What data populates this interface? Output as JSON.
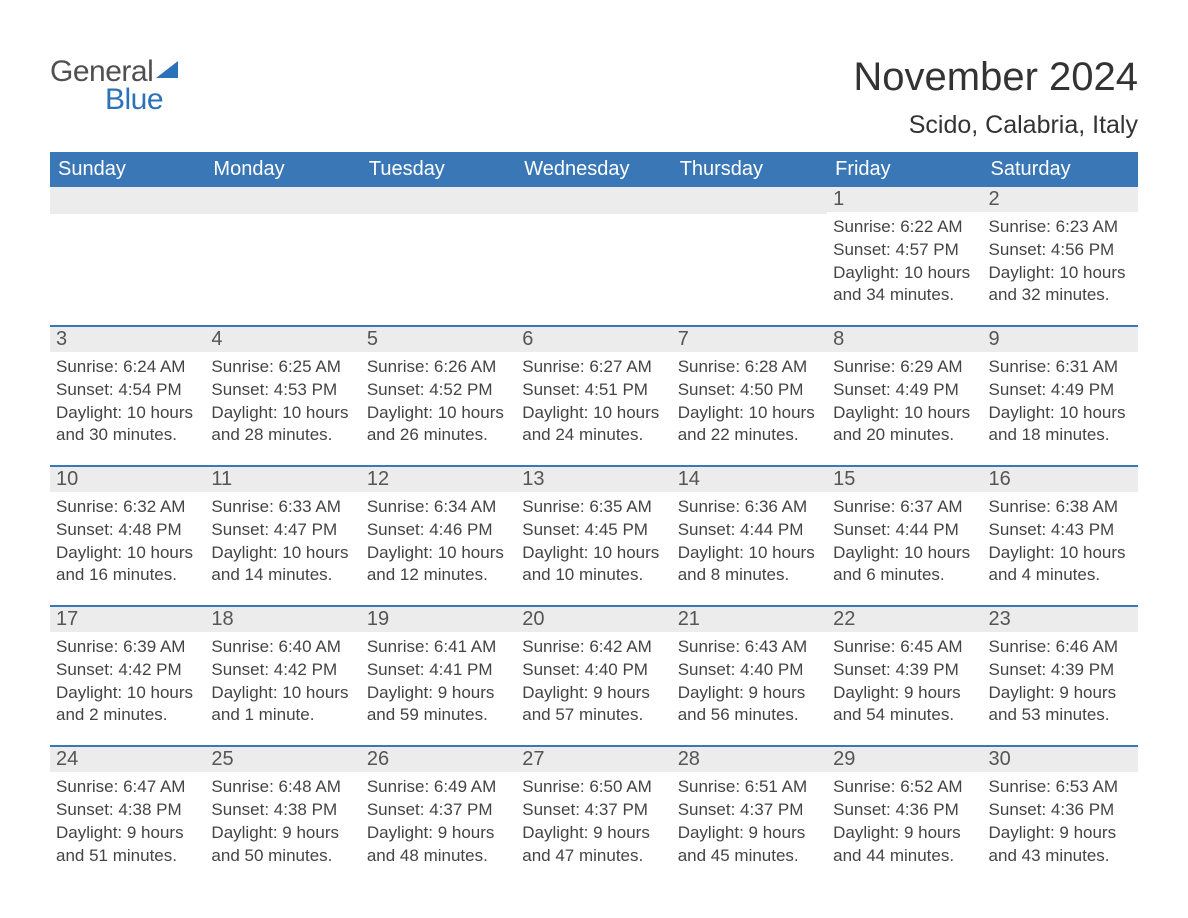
{
  "logo": {
    "general": "General",
    "blue": "Blue"
  },
  "title": "November 2024",
  "location": "Scido, Calabria, Italy",
  "weekday_headers": [
    "Sunday",
    "Monday",
    "Tuesday",
    "Wednesday",
    "Thursday",
    "Friday",
    "Saturday"
  ],
  "colors": {
    "accent": "#3a77b6",
    "logo_blue": "#2b72b9",
    "day_bar_bg": "#ececec",
    "text": "#333333",
    "body_text": "#444444",
    "page_bg": "#ffffff"
  },
  "fonts": {
    "month_title_pt": 40,
    "location_pt": 25,
    "weekday_header_pt": 20,
    "day_number_pt": 20,
    "day_body_pt": 17
  },
  "weeks": [
    [
      {
        "day": "",
        "sunrise": "",
        "sunset": "",
        "daylight": ""
      },
      {
        "day": "",
        "sunrise": "",
        "sunset": "",
        "daylight": ""
      },
      {
        "day": "",
        "sunrise": "",
        "sunset": "",
        "daylight": ""
      },
      {
        "day": "",
        "sunrise": "",
        "sunset": "",
        "daylight": ""
      },
      {
        "day": "",
        "sunrise": "",
        "sunset": "",
        "daylight": ""
      },
      {
        "day": "1",
        "sunrise": "Sunrise: 6:22 AM",
        "sunset": "Sunset: 4:57 PM",
        "daylight": "Daylight: 10 hours and 34 minutes."
      },
      {
        "day": "2",
        "sunrise": "Sunrise: 6:23 AM",
        "sunset": "Sunset: 4:56 PM",
        "daylight": "Daylight: 10 hours and 32 minutes."
      }
    ],
    [
      {
        "day": "3",
        "sunrise": "Sunrise: 6:24 AM",
        "sunset": "Sunset: 4:54 PM",
        "daylight": "Daylight: 10 hours and 30 minutes."
      },
      {
        "day": "4",
        "sunrise": "Sunrise: 6:25 AM",
        "sunset": "Sunset: 4:53 PM",
        "daylight": "Daylight: 10 hours and 28 minutes."
      },
      {
        "day": "5",
        "sunrise": "Sunrise: 6:26 AM",
        "sunset": "Sunset: 4:52 PM",
        "daylight": "Daylight: 10 hours and 26 minutes."
      },
      {
        "day": "6",
        "sunrise": "Sunrise: 6:27 AM",
        "sunset": "Sunset: 4:51 PM",
        "daylight": "Daylight: 10 hours and 24 minutes."
      },
      {
        "day": "7",
        "sunrise": "Sunrise: 6:28 AM",
        "sunset": "Sunset: 4:50 PM",
        "daylight": "Daylight: 10 hours and 22 minutes."
      },
      {
        "day": "8",
        "sunrise": "Sunrise: 6:29 AM",
        "sunset": "Sunset: 4:49 PM",
        "daylight": "Daylight: 10 hours and 20 minutes."
      },
      {
        "day": "9",
        "sunrise": "Sunrise: 6:31 AM",
        "sunset": "Sunset: 4:49 PM",
        "daylight": "Daylight: 10 hours and 18 minutes."
      }
    ],
    [
      {
        "day": "10",
        "sunrise": "Sunrise: 6:32 AM",
        "sunset": "Sunset: 4:48 PM",
        "daylight": "Daylight: 10 hours and 16 minutes."
      },
      {
        "day": "11",
        "sunrise": "Sunrise: 6:33 AM",
        "sunset": "Sunset: 4:47 PM",
        "daylight": "Daylight: 10 hours and 14 minutes."
      },
      {
        "day": "12",
        "sunrise": "Sunrise: 6:34 AM",
        "sunset": "Sunset: 4:46 PM",
        "daylight": "Daylight: 10 hours and 12 minutes."
      },
      {
        "day": "13",
        "sunrise": "Sunrise: 6:35 AM",
        "sunset": "Sunset: 4:45 PM",
        "daylight": "Daylight: 10 hours and 10 minutes."
      },
      {
        "day": "14",
        "sunrise": "Sunrise: 6:36 AM",
        "sunset": "Sunset: 4:44 PM",
        "daylight": "Daylight: 10 hours and 8 minutes."
      },
      {
        "day": "15",
        "sunrise": "Sunrise: 6:37 AM",
        "sunset": "Sunset: 4:44 PM",
        "daylight": "Daylight: 10 hours and 6 minutes."
      },
      {
        "day": "16",
        "sunrise": "Sunrise: 6:38 AM",
        "sunset": "Sunset: 4:43 PM",
        "daylight": "Daylight: 10 hours and 4 minutes."
      }
    ],
    [
      {
        "day": "17",
        "sunrise": "Sunrise: 6:39 AM",
        "sunset": "Sunset: 4:42 PM",
        "daylight": "Daylight: 10 hours and 2 minutes."
      },
      {
        "day": "18",
        "sunrise": "Sunrise: 6:40 AM",
        "sunset": "Sunset: 4:42 PM",
        "daylight": "Daylight: 10 hours and 1 minute."
      },
      {
        "day": "19",
        "sunrise": "Sunrise: 6:41 AM",
        "sunset": "Sunset: 4:41 PM",
        "daylight": "Daylight: 9 hours and 59 minutes."
      },
      {
        "day": "20",
        "sunrise": "Sunrise: 6:42 AM",
        "sunset": "Sunset: 4:40 PM",
        "daylight": "Daylight: 9 hours and 57 minutes."
      },
      {
        "day": "21",
        "sunrise": "Sunrise: 6:43 AM",
        "sunset": "Sunset: 4:40 PM",
        "daylight": "Daylight: 9 hours and 56 minutes."
      },
      {
        "day": "22",
        "sunrise": "Sunrise: 6:45 AM",
        "sunset": "Sunset: 4:39 PM",
        "daylight": "Daylight: 9 hours and 54 minutes."
      },
      {
        "day": "23",
        "sunrise": "Sunrise: 6:46 AM",
        "sunset": "Sunset: 4:39 PM",
        "daylight": "Daylight: 9 hours and 53 minutes."
      }
    ],
    [
      {
        "day": "24",
        "sunrise": "Sunrise: 6:47 AM",
        "sunset": "Sunset: 4:38 PM",
        "daylight": "Daylight: 9 hours and 51 minutes."
      },
      {
        "day": "25",
        "sunrise": "Sunrise: 6:48 AM",
        "sunset": "Sunset: 4:38 PM",
        "daylight": "Daylight: 9 hours and 50 minutes."
      },
      {
        "day": "26",
        "sunrise": "Sunrise: 6:49 AM",
        "sunset": "Sunset: 4:37 PM",
        "daylight": "Daylight: 9 hours and 48 minutes."
      },
      {
        "day": "27",
        "sunrise": "Sunrise: 6:50 AM",
        "sunset": "Sunset: 4:37 PM",
        "daylight": "Daylight: 9 hours and 47 minutes."
      },
      {
        "day": "28",
        "sunrise": "Sunrise: 6:51 AM",
        "sunset": "Sunset: 4:37 PM",
        "daylight": "Daylight: 9 hours and 45 minutes."
      },
      {
        "day": "29",
        "sunrise": "Sunrise: 6:52 AM",
        "sunset": "Sunset: 4:36 PM",
        "daylight": "Daylight: 9 hours and 44 minutes."
      },
      {
        "day": "30",
        "sunrise": "Sunrise: 6:53 AM",
        "sunset": "Sunset: 4:36 PM",
        "daylight": "Daylight: 9 hours and 43 minutes."
      }
    ]
  ]
}
